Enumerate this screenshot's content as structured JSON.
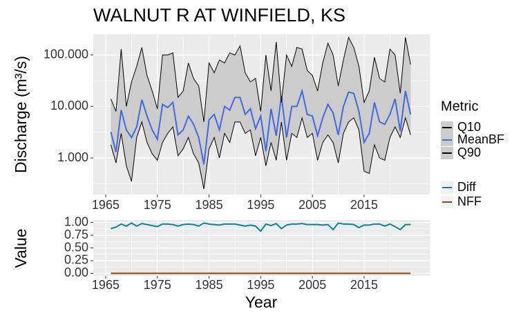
{
  "chart_data": [
    {
      "type": "line",
      "title": "WALNUT R AT WINFIELD, KS",
      "y_label": "Discharge (m³/s)",
      "legend_title": "Metric",
      "legend": "right",
      "log_y": true,
      "grid": true,
      "ribbon": true,
      "ribbon_color": "#CCCCCC",
      "x": [
        1966,
        1967,
        1968,
        1969,
        1970,
        1971,
        1972,
        1973,
        1974,
        1975,
        1976,
        1977,
        1978,
        1979,
        1980,
        1981,
        1982,
        1983,
        1984,
        1985,
        1986,
        1987,
        1988,
        1989,
        1990,
        1991,
        1992,
        1993,
        1994,
        1995,
        1996,
        1997,
        1998,
        1999,
        2000,
        2001,
        2002,
        2003,
        2004,
        2005,
        2006,
        2007,
        2008,
        2009,
        2010,
        2011,
        2012,
        2013,
        2014,
        2015,
        2016,
        2017,
        2018,
        2019,
        2020,
        2021,
        2022,
        2023,
        2024
      ],
      "xlim": [
        1962.6,
        2027.7
      ],
      "xticks": [
        1965,
        1975,
        1985,
        1995,
        2005,
        2015
      ],
      "ylim": [
        195,
        250000
      ],
      "yticks": [
        {
          "value": 1000,
          "label": "1.000"
        },
        {
          "value": 10000,
          "label": "10.000"
        },
        {
          "value": 100000,
          "label": "100.000"
        }
      ],
      "series": [
        {
          "name": "Q10",
          "color": "#000000",
          "values": [
            1800,
            800,
            3000,
            700,
            350,
            2500,
            5000,
            2000,
            1200,
            900,
            2000,
            3000,
            4000,
            1100,
            1500,
            2500,
            1200,
            800,
            250,
            1500,
            2500,
            1000,
            3000,
            2000,
            5000,
            5000,
            3000,
            3500,
            1100,
            2500,
            700,
            2000,
            900,
            5000,
            900,
            3000,
            2500,
            6000,
            2500,
            3000,
            900,
            2000,
            2800,
            2000,
            800,
            3000,
            5000,
            6000,
            3500,
            550,
            500,
            1800,
            1000,
            900,
            2500,
            4000,
            2500,
            6000,
            2800
          ]
        },
        {
          "name": "MeanBF",
          "color": "#4169E1",
          "values": [
            3200,
            1300,
            8500,
            3500,
            2500,
            4000,
            13500,
            6500,
            3500,
            2300,
            11000,
            9500,
            12000,
            2800,
            3500,
            6500,
            4500,
            2500,
            750,
            5500,
            7000,
            3500,
            10000,
            8500,
            15000,
            15000,
            7000,
            9000,
            3700,
            6500,
            1350,
            9000,
            2700,
            16000,
            2500,
            10000,
            10000,
            20000,
            7000,
            6500,
            2700,
            6000,
            11000,
            7500,
            2800,
            10000,
            19000,
            18000,
            8000,
            2000,
            3000,
            12000,
            5000,
            4500,
            7000,
            14000,
            3300,
            20000,
            7000
          ]
        },
        {
          "name": "Q90",
          "color": "#000000",
          "values": [
            14000,
            8000,
            130000,
            10000,
            30000,
            60000,
            140000,
            40000,
            20000,
            9000,
            100000,
            100000,
            110000,
            15000,
            20000,
            70000,
            35000,
            25000,
            5000,
            70000,
            45000,
            80000,
            70000,
            110000,
            100000,
            150000,
            45000,
            30000,
            35000,
            8000,
            100000,
            20000,
            180000,
            12000,
            100000,
            60000,
            140000,
            130000,
            50000,
            40000,
            20000,
            70000,
            170000,
            100000,
            25000,
            80000,
            220000,
            140000,
            60000,
            12000,
            20000,
            90000,
            35000,
            30000,
            130000,
            100000,
            18000,
            220000,
            65000
          ]
        }
      ]
    },
    {
      "type": "line",
      "x_label": "Year",
      "y_label": "Value",
      "legend": "right",
      "grid": true,
      "x": [
        1966,
        1967,
        1968,
        1969,
        1970,
        1971,
        1972,
        1973,
        1974,
        1975,
        1976,
        1977,
        1978,
        1979,
        1980,
        1981,
        1982,
        1983,
        1984,
        1985,
        1986,
        1987,
        1988,
        1989,
        1990,
        1991,
        1992,
        1993,
        1994,
        1995,
        1996,
        1997,
        1998,
        1999,
        2000,
        2001,
        2002,
        2003,
        2004,
        2005,
        2006,
        2007,
        2008,
        2009,
        2010,
        2011,
        2012,
        2013,
        2014,
        2015,
        2016,
        2017,
        2018,
        2019,
        2020,
        2021,
        2022,
        2023,
        2024
      ],
      "xlim": [
        1962.6,
        2027.7
      ],
      "xticks": [
        1965,
        1975,
        1985,
        1995,
        2005,
        2015
      ],
      "ylim": [
        -0.05,
        1.05
      ],
      "yticks": [
        {
          "value": 0,
          "label": "0.00"
        },
        {
          "value": 0.25,
          "label": "0.25"
        },
        {
          "value": 0.5,
          "label": "0.50"
        },
        {
          "value": 0.75,
          "label": "0.75"
        },
        {
          "value": 1,
          "label": "1.00"
        }
      ],
      "series": [
        {
          "name": "Diff",
          "color": "#008B8B",
          "values": [
            0.88,
            0.91,
            0.97,
            0.93,
            0.99,
            0.93,
            0.98,
            0.96,
            0.94,
            0.92,
            0.97,
            0.97,
            0.96,
            0.93,
            0.96,
            0.97,
            0.96,
            0.93,
            0.99,
            0.97,
            0.96,
            0.95,
            0.97,
            0.97,
            0.97,
            0.95,
            0.93,
            0.95,
            0.93,
            0.83,
            0.97,
            0.94,
            0.98,
            0.88,
            0.95,
            0.97,
            0.97,
            0.98,
            0.96,
            0.96,
            0.96,
            0.95,
            0.96,
            0.86,
            0.99,
            0.97,
            0.97,
            0.96,
            0.9,
            0.95,
            0.95,
            0.97,
            0.97,
            0.93,
            0.97,
            0.92,
            0.86,
            0.96,
            0.96
          ]
        },
        {
          "name": "NFF",
          "color": "#8B4513",
          "values": [
            0,
            0,
            0,
            0,
            0,
            0,
            0,
            0,
            0,
            0,
            0,
            0,
            0,
            0,
            0,
            0,
            0,
            0,
            0,
            0,
            0,
            0,
            0,
            0,
            0,
            0,
            0,
            0,
            0,
            0,
            0,
            0,
            0,
            0,
            0,
            0,
            0,
            0,
            0,
            0,
            0,
            0,
            0,
            0,
            0,
            0,
            0,
            0,
            0,
            0,
            0,
            0,
            0,
            0,
            0,
            0,
            0,
            0,
            0
          ]
        }
      ]
    }
  ]
}
